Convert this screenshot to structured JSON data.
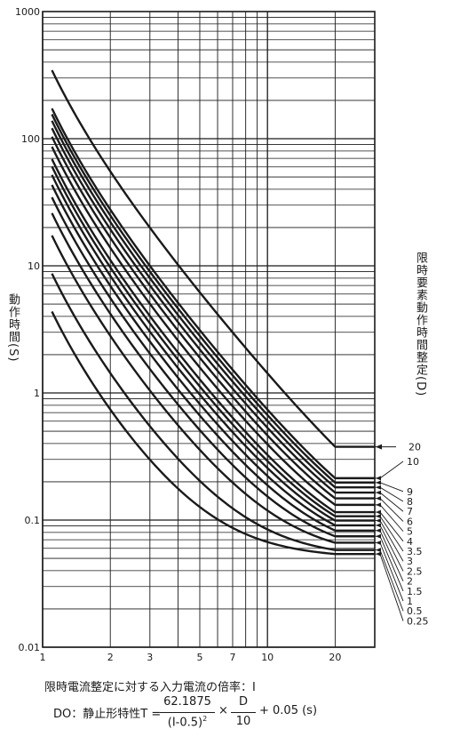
{
  "chart_data": {
    "type": "line",
    "x_scale": "log",
    "y_scale": "log",
    "xlim": [
      1,
      30
    ],
    "ylim": [
      0.01,
      1000
    ],
    "x_ticks": [
      "1",
      "2",
      "3",
      "5",
      "7",
      "10",
      "20"
    ],
    "y_ticks": [
      "0.01",
      "0.1",
      "1",
      "10",
      "100",
      "1000"
    ],
    "grid": true,
    "x_start": 1.1,
    "x_saturation": 20,
    "formula": {
      "constant": 62.1875,
      "offset": 0.5,
      "adder": 0.05,
      "divisor": 10
    },
    "series": [
      {
        "name": "20",
        "dial": 20
      },
      {
        "name": "10",
        "dial": 10
      },
      {
        "name": "9",
        "dial": 9
      },
      {
        "name": "8",
        "dial": 8
      },
      {
        "name": "7",
        "dial": 7
      },
      {
        "name": "6",
        "dial": 6
      },
      {
        "name": "5",
        "dial": 5
      },
      {
        "name": "4",
        "dial": 4
      },
      {
        "name": "3.5",
        "dial": 3.5
      },
      {
        "name": "3",
        "dial": 3
      },
      {
        "name": "2.5",
        "dial": 2.5
      },
      {
        "name": "2",
        "dial": 2
      },
      {
        "name": "1.5",
        "dial": 1.5
      },
      {
        "name": "1",
        "dial": 1
      },
      {
        "name": "0.5",
        "dial": 0.5
      },
      {
        "name": "0.25",
        "dial": 0.25
      }
    ]
  },
  "labels": {
    "ylabel": "動作時間(S)",
    "dial_label": "限時要素動作時間整定(D)",
    "xaxis_title": "限時電流整定に対する入力電流の倍率：I",
    "formula_prefix": "DO：静止形特性T =",
    "frac1_num": "62.1875",
    "frac1_den": "(I-0.5)",
    "frac1_den_exp": "2",
    "times": "×",
    "frac2_num": "D",
    "frac2_den": "10",
    "formula_suffix": "+ 0.05 (s)"
  },
  "colors": {
    "line": "#1a1a1a",
    "grid": "#1a1a1a"
  }
}
